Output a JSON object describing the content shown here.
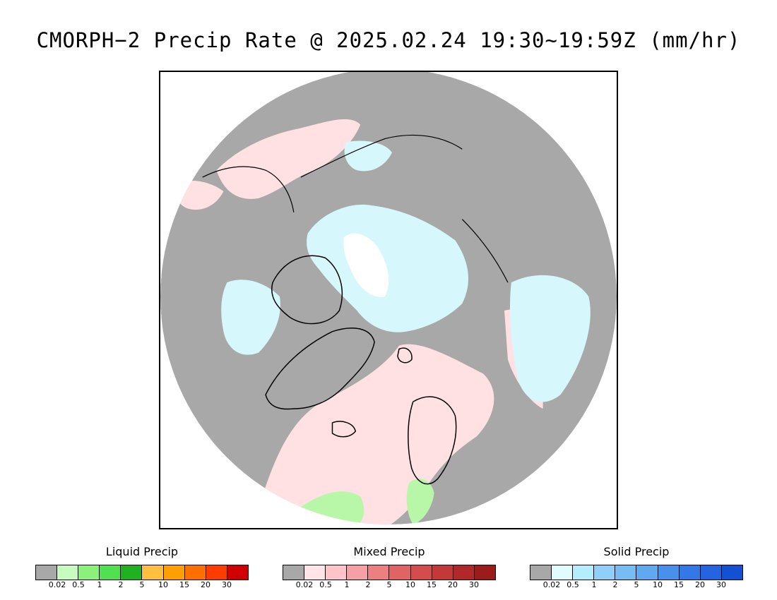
{
  "title": "CMORPH−2 Precip Rate @ 2025.02.24 19:30~19:59Z (mm/hr)",
  "colors": {
    "no_data": "#a8a8a8",
    "land_outline": "#000000",
    "liquid_light": "#b8f7a8",
    "mixed_light": "#ffe0e3",
    "solid_light": "#d6f8fc",
    "ice_white": "#ffffff"
  },
  "legends": [
    {
      "title": "Liquid Precip",
      "ticks": [
        "0.02",
        "0.5",
        "1",
        "2",
        "5",
        "10",
        "15",
        "20",
        "30"
      ],
      "colors": [
        "#a8a8a8",
        "#c8fbc0",
        "#8cf07c",
        "#50e050",
        "#20b020",
        "#ffc040",
        "#ffa000",
        "#ff7000",
        "#ff3c00",
        "#d00000"
      ]
    },
    {
      "title": "Mixed Precip",
      "ticks": [
        "0.02",
        "0.5",
        "1",
        "2",
        "5",
        "10",
        "15",
        "20",
        "30"
      ],
      "colors": [
        "#a8a8a8",
        "#ffe4e8",
        "#ffc4ca",
        "#f4a0a4",
        "#ec8080",
        "#e06464",
        "#d44c4c",
        "#c43838",
        "#b02828",
        "#9c1c1c"
      ]
    },
    {
      "title": "Solid Precip",
      "ticks": [
        "0.02",
        "0.5",
        "1",
        "2",
        "5",
        "10",
        "15",
        "20",
        "30"
      ],
      "colors": [
        "#a8a8a8",
        "#e0fcff",
        "#b4eefc",
        "#90d0f8",
        "#78bcf4",
        "#60a8f0",
        "#4890ec",
        "#3478e8",
        "#2464e0",
        "#1450d4"
      ]
    }
  ]
}
